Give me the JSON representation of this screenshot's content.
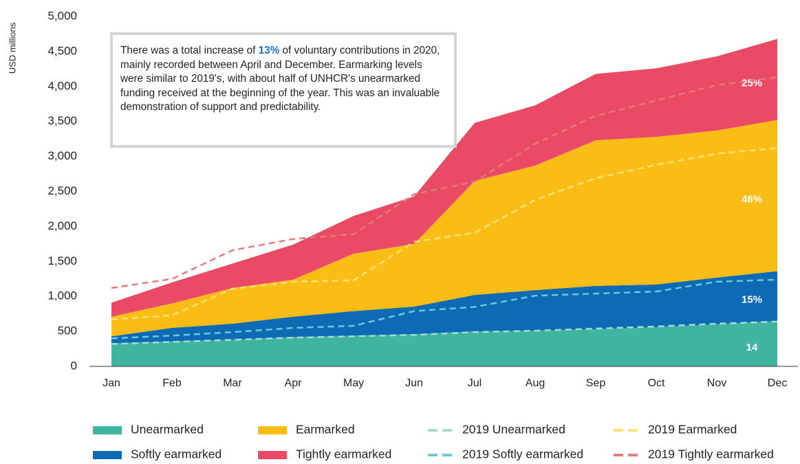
{
  "chart_data": {
    "type": "stacked_area",
    "y_label": "USD millions",
    "categories": [
      "Jan",
      "Feb",
      "Mar",
      "Apr",
      "May",
      "Jun",
      "Jul",
      "Aug",
      "Sep",
      "Oct",
      "Nov",
      "Dec"
    ],
    "ylim": [
      0,
      5000
    ],
    "yticks": [
      0,
      500,
      {
        "value": 1000,
        "label": "1,000"
      },
      {
        "value": 1500,
        "label": "1,500"
      },
      {
        "value": 2000,
        "label": "2,000"
      },
      {
        "value": 2500,
        "label": "2,500"
      },
      {
        "value": 3000,
        "label": "3,000"
      },
      {
        "value": 3500,
        "label": "3,500"
      },
      {
        "value": 4000,
        "label": "4,000"
      },
      {
        "value": 4500,
        "label": "4,500"
      },
      {
        "value": 5000,
        "label": "5,000"
      }
    ],
    "series": [
      {
        "name": "Unearmarked",
        "color": "#3fb59f",
        "label": "14",
        "values": [
          330,
          360,
          380,
          420,
          440,
          460,
          500,
          510,
          530,
          560,
          600,
          650
        ]
      },
      {
        "name": "Softly earmarked",
        "color": "#0d6bb5",
        "label": "15%",
        "values": [
          100,
          190,
          230,
          290,
          350,
          395,
          520,
          580,
          620,
          610,
          670,
          710
        ]
      },
      {
        "name": "Earmarked",
        "color": "#f9bd15",
        "label": "46%",
        "values": [
          280,
          350,
          510,
          530,
          820,
          895,
          1630,
          1780,
          2080,
          2110,
          2100,
          2160
        ]
      },
      {
        "name": "Tightly earmarked",
        "color": "#ea4a64",
        "label": "25%",
        "values": [
          200,
          300,
          350,
          500,
          540,
          680,
          830,
          860,
          950,
          980,
          1060,
          1160
        ]
      },
      {
        "name": "2019 Unearmarked",
        "type": "dashed_line",
        "color": "#a6ddd3",
        "values": [
          320,
          350,
          380,
          410,
          430,
          450,
          490,
          510,
          540,
          570,
          610,
          640
        ]
      },
      {
        "name": "2019 Softly earmarked",
        "type": "dashed_line",
        "color": "#6fc7d9",
        "values": [
          400,
          440,
          490,
          550,
          580,
          790,
          850,
          1010,
          1040,
          1070,
          1210,
          1240
        ]
      },
      {
        "name": "2019 Earmarked",
        "type": "dashed_line",
        "color": "#fde27a",
        "values": [
          670,
          730,
          1110,
          1210,
          1230,
          1780,
          1910,
          2380,
          2690,
          2880,
          3040,
          3120
        ]
      },
      {
        "name": "2019 Tightly earmarked",
        "type": "dashed_line",
        "color": "#e07b7e",
        "values": [
          1120,
          1250,
          1660,
          1820,
          1890,
          2460,
          2640,
          3180,
          3580,
          3800,
          4020,
          4130
        ]
      }
    ],
    "annotation": {
      "before": "There was a total increase of ",
      "highlight": "13%",
      "after": " of voluntary contributions in 2020, mainly recorded between April and December. Earmarking levels were similar to 2019's, with about half of UNHCR's unearmarked funding received at the beginning of the year. This was an invaluable demonstration of support and predictability."
    }
  }
}
